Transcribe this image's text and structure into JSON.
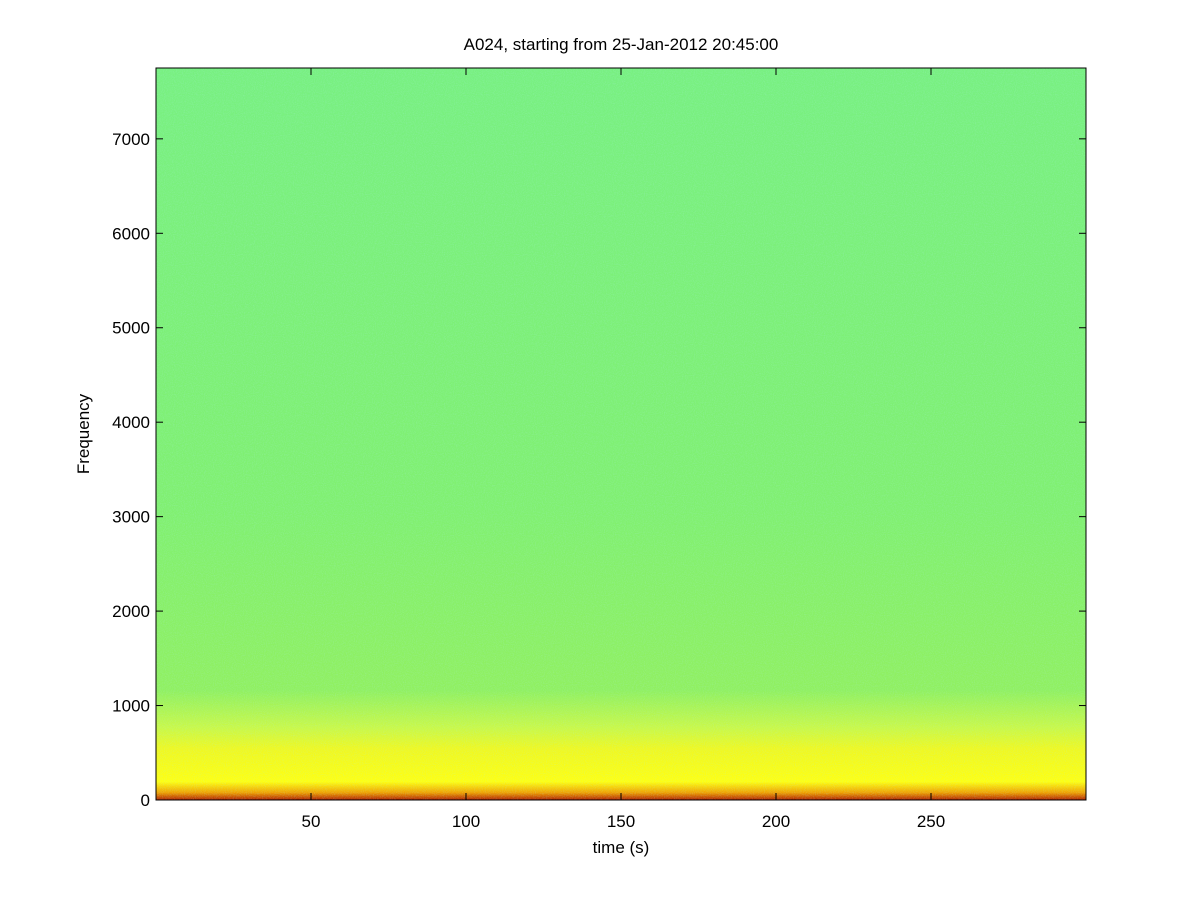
{
  "chart_data": {
    "type": "spectrogram",
    "title": "A024, starting from 25-Jan-2012 20:45:00",
    "xlabel": "time (s)",
    "ylabel": "Frequency",
    "xlim": [
      0,
      300
    ],
    "xticks": [
      50,
      100,
      150,
      200,
      250
    ],
    "ylim": [
      0,
      7750
    ],
    "yticks": [
      0,
      1000,
      2000,
      3000,
      4000,
      5000,
      6000,
      7000
    ]
  }
}
